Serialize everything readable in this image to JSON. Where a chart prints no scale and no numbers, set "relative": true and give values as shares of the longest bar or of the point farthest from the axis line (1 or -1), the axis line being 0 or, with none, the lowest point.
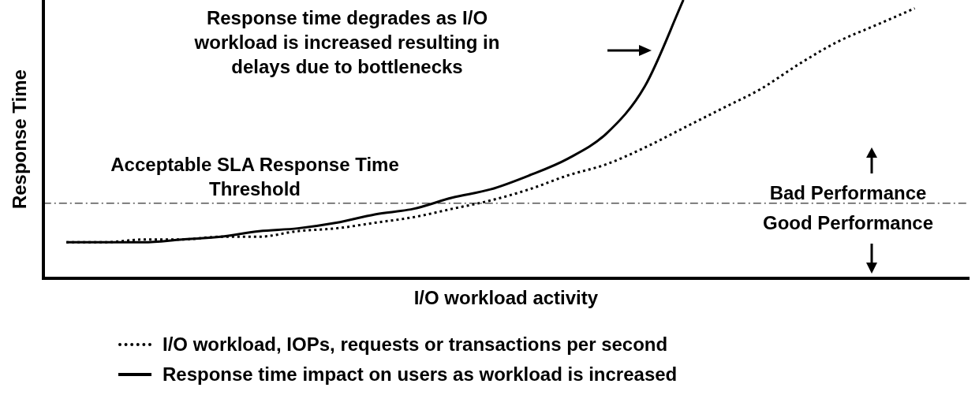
{
  "chart_data": {
    "type": "line",
    "relative": true,
    "xlabel": "I/O workload activity",
    "ylabel": "Response Time",
    "categories": [
      null,
      null,
      null,
      null,
      null,
      null,
      null,
      null,
      null,
      null,
      null,
      null,
      null,
      null,
      null,
      null,
      null,
      null,
      null,
      null,
      null,
      null,
      null
    ],
    "series": [
      {
        "name": "I/O workload, IOPs, requests or transactions per second",
        "color": "#000000",
        "line_style": "dotted",
        "values": [
          0.13,
          0.13,
          0.14,
          0.14,
          0.15,
          0.15,
          0.17,
          0.18,
          0.2,
          0.22,
          0.25,
          0.28,
          0.32,
          0.37,
          0.41,
          0.47,
          0.54,
          0.61,
          0.68,
          0.77,
          0.85,
          0.91,
          0.97
        ]
      },
      {
        "name": "Response time impact on users as workload is increased",
        "color": "#000000",
        "line_style": "solid",
        "values": [
          0.13,
          0.13,
          0.13,
          0.14,
          0.15,
          0.17,
          0.18,
          0.2,
          0.23,
          0.25,
          0.29,
          0.32,
          0.37,
          0.43,
          0.52,
          0.69,
          1,
          null,
          null,
          null,
          null,
          null,
          null
        ]
      }
    ],
    "ref_lines": [
      {
        "axis": "y",
        "value": 0.27,
        "label": "Acceptable SLA Response Time Threshold",
        "color": "#000000",
        "line_style": "dashed"
      }
    ],
    "annotations": [
      "Response time degrades as I/O workload is increased resulting in delays due to bottlenecks",
      "Bad Performance",
      "Good Performance"
    ],
    "legend": "bottom",
    "grid": false,
    "marker": "none",
    "tick_labels": false
  }
}
